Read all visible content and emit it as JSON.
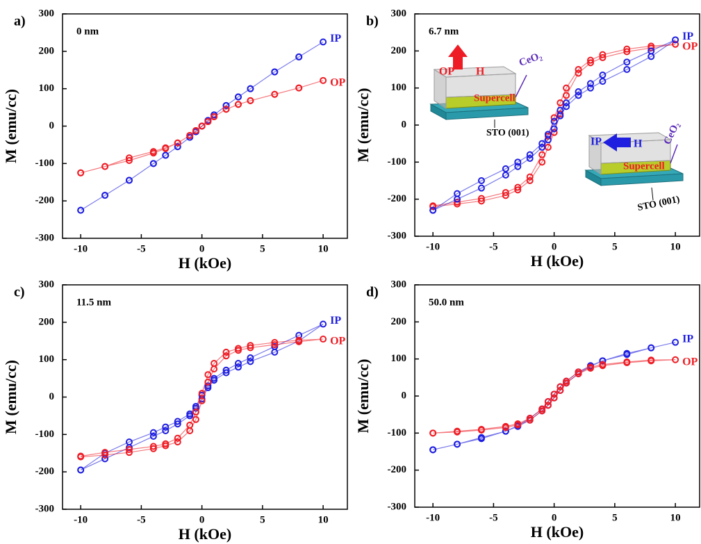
{
  "chart_data": [
    {
      "type": "scatter",
      "label": "a)",
      "title": "0 nm",
      "xlabel": "H (kOe)",
      "ylabel": "M (emu/cc)",
      "xlim": [
        -11.5,
        12
      ],
      "ylim": [
        -300,
        300
      ],
      "xticks": [
        -10,
        -5,
        0,
        5,
        10
      ],
      "yticks": [
        -300,
        -200,
        -100,
        0,
        100,
        200,
        300
      ],
      "x": [
        -10,
        -8,
        -6,
        -4,
        -3,
        -2,
        -1,
        -0.5,
        0,
        0.5,
        1,
        2,
        3,
        4,
        6,
        8,
        10,
        8,
        6,
        4,
        3,
        2,
        1,
        0.5,
        0,
        -0.5,
        -1,
        -2,
        -3,
        -4,
        -6,
        -8,
        -10
      ],
      "series": [
        {
          "name": "IP",
          "color": "#1f1fe0",
          "values": [
            -225,
            -185,
            -145,
            -100,
            -78,
            -55,
            -30,
            -15,
            0,
            15,
            30,
            55,
            78,
            100,
            145,
            185,
            225,
            185,
            145,
            100,
            78,
            55,
            30,
            15,
            0,
            -15,
            -30,
            -55,
            -78,
            -100,
            -145,
            -185,
            -225
          ]
        },
        {
          "name": "OP",
          "color": "#ee1c24",
          "values": [
            -125,
            -108,
            -92,
            -72,
            -60,
            -45,
            -25,
            -12,
            0,
            12,
            25,
            45,
            58,
            68,
            85,
            102,
            122,
            102,
            85,
            68,
            58,
            45,
            25,
            12,
            0,
            -12,
            -25,
            -45,
            -58,
            -68,
            -85,
            -108,
            -125
          ]
        }
      ]
    },
    {
      "type": "scatter",
      "label": "b)",
      "title": "6.7 nm",
      "xlabel": "H (kOe)",
      "ylabel": "M (emu/cc)",
      "xlim": [
        -11.5,
        12
      ],
      "ylim": [
        -300,
        300
      ],
      "xticks": [
        -10,
        -5,
        0,
        5,
        10
      ],
      "yticks": [
        -300,
        -200,
        -100,
        0,
        100,
        200,
        300
      ],
      "x": [
        -10,
        -8,
        -6,
        -4,
        -3,
        -2,
        -1,
        -0.5,
        0,
        0.5,
        1,
        2,
        3,
        4,
        6,
        8,
        10,
        8,
        6,
        4,
        3,
        2,
        1,
        0.5,
        0,
        -0.5,
        -1,
        -2,
        -3,
        -4,
        -6,
        -8,
        -10
      ],
      "series": [
        {
          "name": "OP",
          "color": "#ee1c24",
          "values": [
            -220,
            -213,
            -205,
            -190,
            -175,
            -150,
            -100,
            -60,
            -20,
            30,
            80,
            140,
            168,
            182,
            198,
            208,
            218,
            213,
            205,
            190,
            175,
            150,
            100,
            60,
            20,
            -30,
            -80,
            -140,
            -168,
            -182,
            -198,
            -208,
            -218
          ]
        },
        {
          "name": "IP",
          "color": "#1f1fe0",
          "values": [
            -230,
            -200,
            -170,
            -135,
            -112,
            -90,
            -60,
            -40,
            -10,
            25,
            50,
            80,
            100,
            118,
            150,
            185,
            230,
            200,
            170,
            135,
            112,
            90,
            60,
            40,
            10,
            -25,
            -50,
            -80,
            -100,
            -118,
            -150,
            -185,
            -230
          ]
        }
      ],
      "annotations": [
        "OP",
        "H",
        "Supercell",
        "CeO₂",
        "STO (001)",
        "IP",
        "H",
        "Supercell",
        "CeO₂",
        "STO (001)"
      ]
    },
    {
      "type": "scatter",
      "label": "c)",
      "title": "11.5 nm",
      "xlabel": "H (kOe)",
      "ylabel": "M (emu/cc)",
      "xlim": [
        -11.5,
        12
      ],
      "ylim": [
        -300,
        300
      ],
      "xticks": [
        -10,
        -5,
        0,
        5,
        10
      ],
      "yticks": [
        -300,
        -200,
        -100,
        0,
        100,
        200,
        300
      ],
      "x": [
        -10,
        -8,
        -6,
        -4,
        -3,
        -2,
        -1,
        -0.5,
        0,
        0.5,
        1,
        2,
        3,
        4,
        6,
        8,
        10,
        8,
        6,
        4,
        3,
        2,
        1,
        0.5,
        0,
        -0.5,
        -1,
        -2,
        -3,
        -4,
        -6,
        -8,
        -10
      ],
      "series": [
        {
          "name": "IP",
          "color": "#1f1fe0",
          "values": [
            -195,
            -165,
            -135,
            -105,
            -90,
            -72,
            -50,
            -30,
            -5,
            25,
            45,
            65,
            80,
            95,
            120,
            150,
            195,
            165,
            135,
            105,
            90,
            72,
            50,
            30,
            5,
            -25,
            -45,
            -65,
            -80,
            -95,
            -120,
            -150,
            -195
          ]
        },
        {
          "name": "OP",
          "color": "#ee1c24",
          "values": [
            -160,
            -155,
            -148,
            -138,
            -130,
            -120,
            -90,
            -60,
            -10,
            40,
            75,
            110,
            125,
            132,
            140,
            148,
            155,
            152,
            146,
            138,
            130,
            120,
            90,
            60,
            10,
            -40,
            -75,
            -110,
            -125,
            -132,
            -140,
            -148,
            -158
          ]
        }
      ]
    },
    {
      "type": "scatter",
      "label": "d)",
      "title": "50.0 nm",
      "xlabel": "H (kOe)",
      "ylabel": "M (emu/cc)",
      "xlim": [
        -11.5,
        12
      ],
      "ylim": [
        -300,
        300
      ],
      "xticks": [
        -10,
        -5,
        0,
        5,
        10
      ],
      "yticks": [
        -300,
        -200,
        -100,
        0,
        100,
        200,
        300
      ],
      "x": [
        -10,
        -8,
        -6,
        -4,
        -3,
        -2,
        -1,
        -0.5,
        0,
        0.5,
        1,
        2,
        3,
        4,
        6,
        8,
        10,
        8,
        6,
        4,
        3,
        2,
        1,
        0.5,
        0,
        -0.5,
        -1,
        -2,
        -3,
        -4,
        -6,
        -8,
        -10
      ],
      "series": [
        {
          "name": "IP",
          "color": "#1f1fe0",
          "values": [
            -145,
            -130,
            -112,
            -95,
            -82,
            -65,
            -40,
            -25,
            -5,
            15,
            35,
            60,
            80,
            95,
            115,
            130,
            145,
            130,
            112,
            95,
            82,
            65,
            40,
            25,
            5,
            -15,
            -35,
            -60,
            -80,
            -95,
            -115,
            -130,
            -145
          ]
        },
        {
          "name": "OP",
          "color": "#ee1c24",
          "values": [
            -100,
            -97,
            -92,
            -85,
            -78,
            -65,
            -40,
            -25,
            -5,
            15,
            35,
            60,
            75,
            82,
            90,
            95,
            98,
            97,
            92,
            85,
            78,
            65,
            40,
            25,
            5,
            -15,
            -35,
            -60,
            -75,
            -82,
            -90,
            -95,
            -100
          ]
        }
      ]
    }
  ]
}
